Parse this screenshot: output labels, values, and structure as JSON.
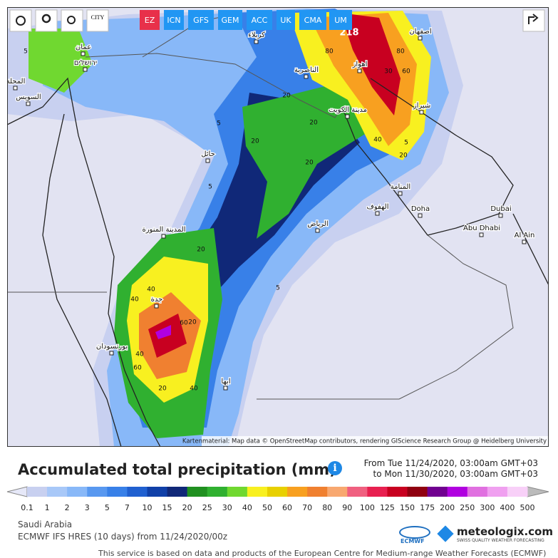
{
  "toolbar": {
    "city_icon": "CITY",
    "models": [
      "EZ",
      "ICN",
      "GFS",
      "GEM",
      "ACC",
      "UK",
      "CMA",
      "UM"
    ]
  },
  "map": {
    "cities": [
      "كربلاء",
      "عمان",
      "ירושלים",
      "المحلة",
      "السويس",
      "الناصرية",
      "اهواز",
      "اصفهان",
      "شيراز",
      "مدينة الكويت",
      "حائل",
      "المنامة",
      "الهفوف",
      "Doha",
      "Dubai",
      "Abu Dhabi",
      "Al Ain",
      "الرياض",
      "المدينة المنورة",
      "جدة",
      "بورتسودان",
      "ابها"
    ],
    "contour_labels": [
      218,
      80,
      80,
      60,
      30,
      40,
      20,
      20,
      20,
      20,
      5,
      5,
      5,
      20,
      40,
      40,
      60,
      20,
      40,
      60,
      40,
      20,
      5,
      20,
      5
    ],
    "attribution": "Kartenmaterial: Map data © OpenStreetMap contributors, rendering GIScience Research Group @ Heidelberg University"
  },
  "header": {
    "title": "Accumulated total precipitation (mm)",
    "from": "From Tue 11/24/2020, 03:00am GMT+03",
    "to": "to Mon 11/30/2020, 03:00am GMT+03"
  },
  "legend": {
    "labels": [
      0.1,
      1,
      2,
      3,
      5,
      7,
      10,
      15,
      20,
      25,
      30,
      40,
      50,
      60,
      70,
      80,
      90,
      100,
      125,
      150,
      175,
      200,
      250,
      300,
      400,
      500
    ],
    "colors": [
      "#c8d0f0",
      "#a8c8f8",
      "#88b8f8",
      "#5898f0",
      "#3880e8",
      "#2060d0",
      "#1040a8",
      "#102878",
      "#209020",
      "#30b030",
      "#70d830",
      "#f8f020",
      "#e8d000",
      "#f8a020",
      "#f08030",
      "#f8a870",
      "#f06080",
      "#e82050",
      "#c80020",
      "#900010",
      "#700090",
      "#b000e0",
      "#e070e0",
      "#f0a0f0",
      "#f8d0f8"
    ]
  },
  "footer": {
    "region": "Saudi Arabia",
    "model_run": "ECMWF IFS HRES (10 days) from 11/24/2020/00z",
    "ecmwf_logo": "ECMWF",
    "brand": "meteologix.com",
    "tagline": "SWISS QUALITY WEATHER FORECASTING",
    "notice": "This service is based on data and products of the European Centre for Medium-range Weather Forecasts (ECMWF)"
  }
}
